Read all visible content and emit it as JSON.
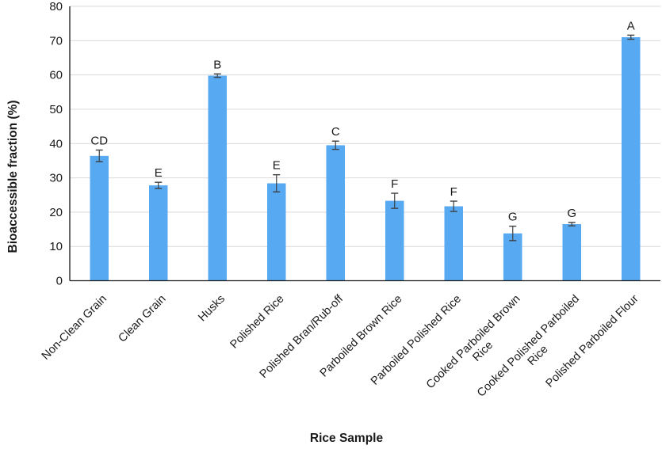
{
  "figure": {
    "background": "#ffffff"
  },
  "chart_data": {
    "type": "bar",
    "title": "",
    "xlabel": "Rice Sample",
    "ylabel": "Bioaccessible fraction (%)",
    "ylim": [
      0,
      80
    ],
    "ytick_step": 10,
    "yticks": [
      0,
      10,
      20,
      30,
      40,
      50,
      60,
      70,
      80
    ],
    "grid": true,
    "legend": "none",
    "bar_color": "#57A9F2",
    "error_bar_color": "#3f3f3f",
    "gridline_color": "#d9d9d9",
    "axis_color": "#1a1a1a",
    "categories": [
      "Non-Clean Grain",
      "Clean Grain",
      "Husks",
      "Polished Rice",
      "Polished Bran/Rub-off",
      "Parboiled Brown Rice",
      "Parboiled Polished Rice",
      "Cooked Parboiled Brown Rice",
      "Cooked Polished Parboiled Rice",
      "Polished Parboiled Flour"
    ],
    "category_label_lines": [
      [
        "Non-Clean Grain"
      ],
      [
        "Clean Grain"
      ],
      [
        "Husks"
      ],
      [
        "Polished Rice"
      ],
      [
        "Polished Bran/Rub-off"
      ],
      [
        "Parboiled Brown Rice"
      ],
      [
        "Parboiled Polished Rice"
      ],
      [
        "Cooked Parboiled Brown",
        "Rice"
      ],
      [
        "Cooked Polished Parboiled",
        "Rice"
      ],
      [
        "Polished Parboiled Flour"
      ]
    ],
    "values": [
      36.4,
      27.8,
      59.8,
      28.4,
      39.5,
      23.3,
      21.7,
      13.8,
      16.5,
      71.0
    ],
    "errors": [
      1.7,
      0.9,
      0.5,
      2.5,
      1.2,
      2.2,
      1.5,
      2.1,
      0.5,
      0.6
    ],
    "significance_letters": [
      "CD",
      "E",
      "B",
      "E",
      "C",
      "F",
      "F",
      "G",
      "G",
      "A"
    ]
  }
}
